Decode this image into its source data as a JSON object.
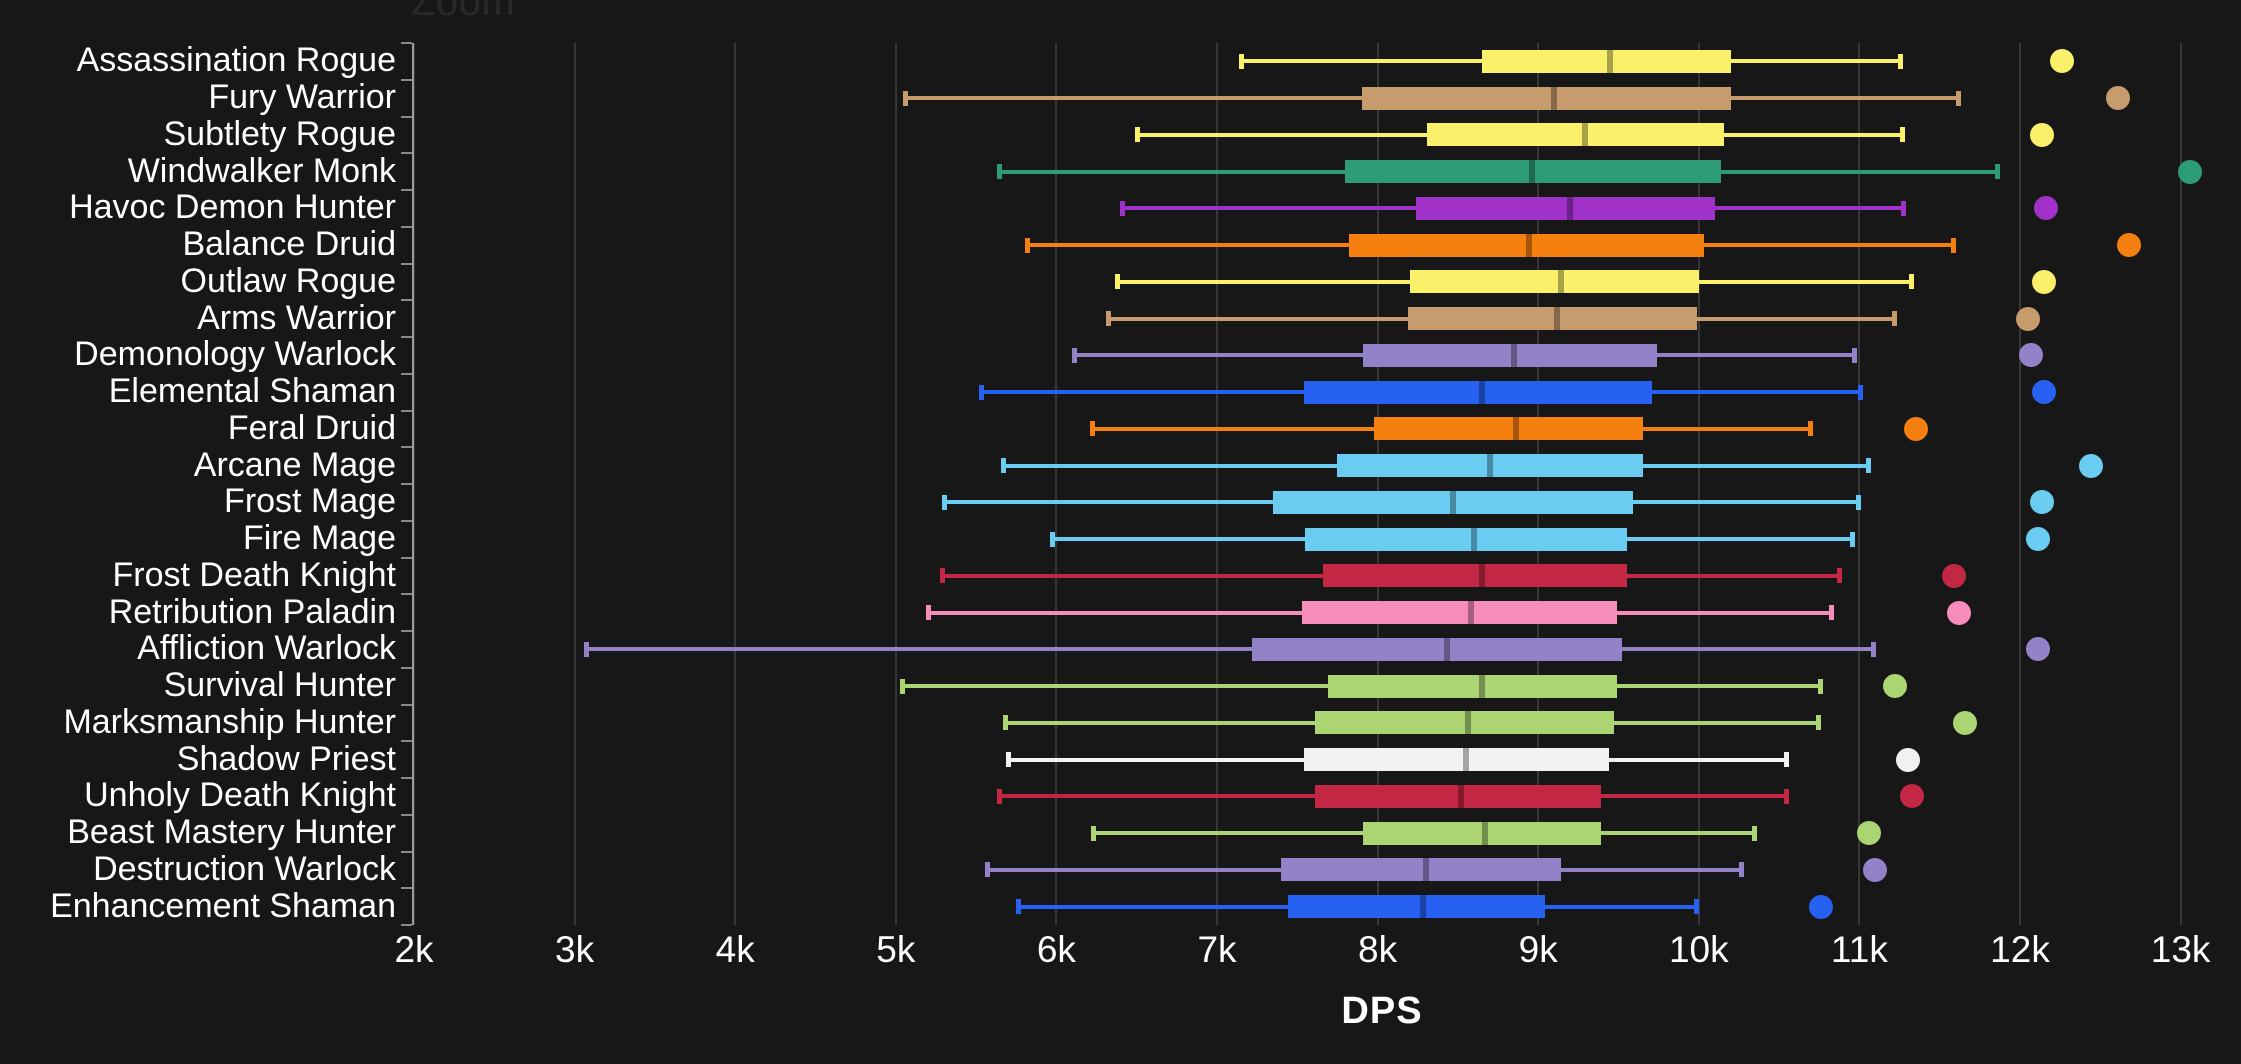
{
  "header": {
    "zoom_label": "Zoom"
  },
  "colors": {
    "background": "#171717",
    "gridline": "#373737",
    "category_axis_line": "#9a9a9a",
    "category_tick": "#8a8a8a",
    "label_text": "#ffffff",
    "zoom_hint_text": "#292929"
  },
  "chart_data": {
    "type": "boxplot",
    "orientation": "horizontal",
    "title": "",
    "xlabel": "DPS",
    "ylabel": "",
    "x_axis": {
      "min_dps": 2000,
      "max_dps": 13375,
      "ticks": [
        {
          "label": "2k",
          "dps": 2000
        },
        {
          "label": "3k",
          "dps": 3000
        },
        {
          "label": "4k",
          "dps": 4000
        },
        {
          "label": "5k",
          "dps": 5000
        },
        {
          "label": "6k",
          "dps": 6000
        },
        {
          "label": "7k",
          "dps": 7000
        },
        {
          "label": "8k",
          "dps": 8000
        },
        {
          "label": "9k",
          "dps": 9000
        },
        {
          "label": "10k",
          "dps": 10000
        },
        {
          "label": "11k",
          "dps": 11000
        },
        {
          "label": "12k",
          "dps": 12000
        },
        {
          "label": "13k",
          "dps": 13000
        }
      ]
    },
    "grid": true,
    "legend": false,
    "series": [
      {
        "name": "Assassination Rogue",
        "color": "#FAF06A",
        "low": 7150,
        "q1": 8650,
        "median": 9450,
        "q3": 10200,
        "high": 11260,
        "best": 12260
      },
      {
        "name": "Fury Warrior",
        "color": "#C69B6D",
        "low": 5060,
        "q1": 7900,
        "median": 9100,
        "q3": 10200,
        "high": 11620,
        "best": 12610
      },
      {
        "name": "Subtlety Rogue",
        "color": "#FAF06A",
        "low": 6500,
        "q1": 8310,
        "median": 9290,
        "q3": 10160,
        "high": 11270,
        "best": 12140
      },
      {
        "name": "Windwalker Monk",
        "color": "#2E9B77",
        "low": 5640,
        "q1": 7800,
        "median": 8960,
        "q3": 10140,
        "high": 11860,
        "best": 13060
      },
      {
        "name": "Havoc Demon Hunter",
        "color": "#A032CA",
        "low": 6410,
        "q1": 8240,
        "median": 9200,
        "q3": 10100,
        "high": 11280,
        "best": 12160
      },
      {
        "name": "Balance Druid",
        "color": "#F57F0F",
        "low": 5820,
        "q1": 7820,
        "median": 8940,
        "q3": 10030,
        "high": 11590,
        "best": 12680
      },
      {
        "name": "Outlaw Rogue",
        "color": "#FAF06A",
        "low": 6380,
        "q1": 8200,
        "median": 9140,
        "q3": 10000,
        "high": 11330,
        "best": 12150
      },
      {
        "name": "Arms Warrior",
        "color": "#C69B6D",
        "low": 6320,
        "q1": 8190,
        "median": 9120,
        "q3": 9990,
        "high": 11220,
        "best": 12050
      },
      {
        "name": "Demonology Warlock",
        "color": "#9482C9",
        "low": 6110,
        "q1": 7910,
        "median": 8850,
        "q3": 9740,
        "high": 10970,
        "best": 12070
      },
      {
        "name": "Elemental Shaman",
        "color": "#2761F2",
        "low": 5530,
        "q1": 7540,
        "median": 8650,
        "q3": 9710,
        "high": 11010,
        "best": 12150
      },
      {
        "name": "Feral Druid",
        "color": "#F57F0F",
        "low": 6220,
        "q1": 7980,
        "median": 8860,
        "q3": 9650,
        "high": 10700,
        "best": 11350
      },
      {
        "name": "Arcane Mage",
        "color": "#69CCF0",
        "low": 5670,
        "q1": 7750,
        "median": 8700,
        "q3": 9650,
        "high": 11060,
        "best": 12440
      },
      {
        "name": "Frost Mage",
        "color": "#69CCF0",
        "low": 5300,
        "q1": 7350,
        "median": 8470,
        "q3": 9590,
        "high": 11000,
        "best": 12140
      },
      {
        "name": "Fire Mage",
        "color": "#69CCF0",
        "low": 5970,
        "q1": 7550,
        "median": 8600,
        "q3": 9550,
        "high": 10960,
        "best": 12110
      },
      {
        "name": "Frost Death Knight",
        "color": "#C42743",
        "low": 5290,
        "q1": 7660,
        "median": 8650,
        "q3": 9550,
        "high": 10880,
        "best": 11590
      },
      {
        "name": "Retribution Paladin",
        "color": "#F58CBA",
        "low": 5200,
        "q1": 7530,
        "median": 8580,
        "q3": 9490,
        "high": 10830,
        "best": 11620
      },
      {
        "name": "Affliction Warlock",
        "color": "#9482C9",
        "low": 3070,
        "q1": 7220,
        "median": 8430,
        "q3": 9520,
        "high": 11090,
        "best": 12110
      },
      {
        "name": "Survival Hunter",
        "color": "#ABD473",
        "low": 5040,
        "q1": 7690,
        "median": 8650,
        "q3": 9490,
        "high": 10760,
        "best": 11220
      },
      {
        "name": "Marksmanship Hunter",
        "color": "#ABD473",
        "low": 5680,
        "q1": 7610,
        "median": 8560,
        "q3": 9470,
        "high": 10750,
        "best": 11660
      },
      {
        "name": "Shadow Priest",
        "color": "#F2F2F2",
        "low": 5700,
        "q1": 7540,
        "median": 8550,
        "q3": 9440,
        "high": 10550,
        "best": 11300
      },
      {
        "name": "Unholy Death Knight",
        "color": "#C42743",
        "low": 5640,
        "q1": 7610,
        "median": 8520,
        "q3": 9390,
        "high": 10550,
        "best": 11330
      },
      {
        "name": "Beast Mastery Hunter",
        "color": "#ABD473",
        "low": 6230,
        "q1": 7910,
        "median": 8670,
        "q3": 9390,
        "high": 10350,
        "best": 11060
      },
      {
        "name": "Destruction Warlock",
        "color": "#9482C9",
        "low": 5570,
        "q1": 7400,
        "median": 8300,
        "q3": 9140,
        "high": 10270,
        "best": 11100
      },
      {
        "name": "Enhancement Shaman",
        "color": "#2761F2",
        "low": 5760,
        "q1": 7440,
        "median": 8280,
        "q3": 9040,
        "high": 9990,
        "best": 10760
      }
    ]
  }
}
